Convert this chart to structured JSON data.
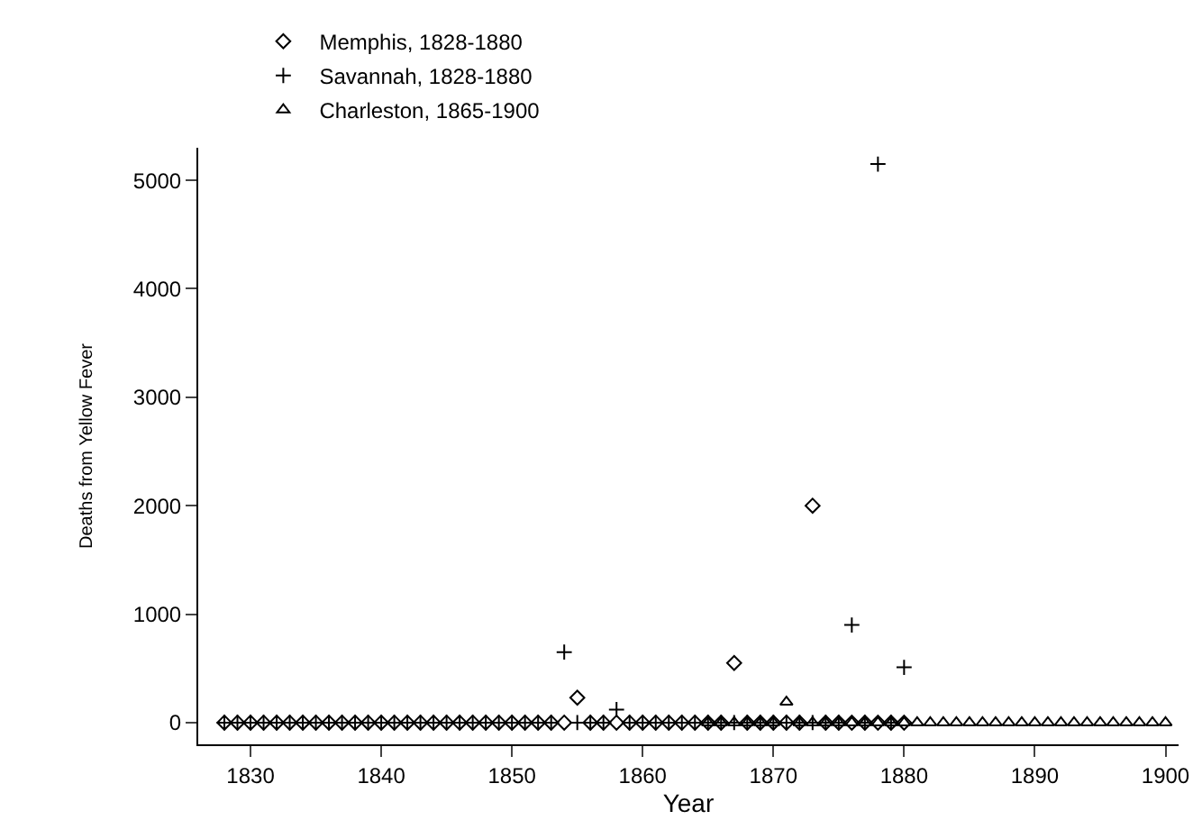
{
  "chart_data": {
    "type": "scatter",
    "xlabel": "Year",
    "ylabel": "Deaths from Yellow Fever",
    "legend": "top",
    "grid": false,
    "xlim": [
      1826,
      1901
    ],
    "xticks": [
      1830,
      1840,
      1850,
      1860,
      1870,
      1880,
      1890,
      1900
    ],
    "ylim": [
      -200,
      5300
    ],
    "yticks": [
      0,
      1000,
      2000,
      3000,
      4000,
      5000
    ],
    "series": [
      {
        "name": "Memphis, 1828-1880",
        "color": "#000000",
        "marker": "diamond",
        "x": [
          1828,
          1829,
          1830,
          1831,
          1832,
          1833,
          1834,
          1835,
          1836,
          1837,
          1838,
          1839,
          1840,
          1841,
          1842,
          1843,
          1844,
          1845,
          1846,
          1847,
          1848,
          1849,
          1850,
          1851,
          1852,
          1853,
          1854,
          1855,
          1856,
          1857,
          1858,
          1859,
          1860,
          1861,
          1862,
          1863,
          1864,
          1865,
          1866,
          1867,
          1868,
          1869,
          1870,
          1871,
          1872,
          1873,
          1874,
          1875,
          1876,
          1877,
          1878,
          1879,
          1880
        ],
        "values": [
          0,
          0,
          0,
          0,
          0,
          0,
          0,
          0,
          0,
          0,
          0,
          0,
          0,
          0,
          0,
          0,
          0,
          0,
          0,
          0,
          0,
          0,
          0,
          0,
          0,
          0,
          0,
          230,
          0,
          0,
          0,
          0,
          0,
          0,
          0,
          0,
          0,
          0,
          0,
          550,
          0,
          0,
          0,
          0,
          0,
          2000,
          0,
          0,
          0,
          0,
          0,
          0,
          0
        ]
      },
      {
        "name": "Savannah, 1828-1880",
        "color": "#000000",
        "marker": "cross",
        "x": [
          1828,
          1829,
          1830,
          1831,
          1832,
          1833,
          1834,
          1835,
          1836,
          1837,
          1838,
          1839,
          1840,
          1841,
          1842,
          1843,
          1844,
          1845,
          1846,
          1847,
          1848,
          1849,
          1850,
          1851,
          1852,
          1853,
          1854,
          1855,
          1856,
          1857,
          1858,
          1859,
          1860,
          1861,
          1862,
          1863,
          1864,
          1865,
          1866,
          1867,
          1868,
          1869,
          1870,
          1871,
          1872,
          1873,
          1874,
          1875,
          1876,
          1877,
          1878,
          1879,
          1880
        ],
        "values": [
          0,
          0,
          0,
          0,
          0,
          0,
          0,
          0,
          0,
          0,
          0,
          0,
          0,
          0,
          0,
          0,
          0,
          0,
          0,
          0,
          0,
          0,
          0,
          0,
          0,
          0,
          650,
          0,
          0,
          0,
          120,
          0,
          0,
          0,
          0,
          0,
          0,
          0,
          0,
          0,
          0,
          0,
          0,
          0,
          0,
          0,
          0,
          0,
          900,
          0,
          5150,
          0,
          510
        ]
      },
      {
        "name": "Charleston, 1865-1900",
        "color": "#000000",
        "marker": "triangle",
        "x": [
          1865,
          1866,
          1867,
          1868,
          1869,
          1870,
          1871,
          1872,
          1873,
          1874,
          1875,
          1876,
          1877,
          1878,
          1879,
          1880,
          1881,
          1882,
          1883,
          1884,
          1885,
          1886,
          1887,
          1888,
          1889,
          1890,
          1891,
          1892,
          1893,
          1894,
          1895,
          1896,
          1897,
          1898,
          1899,
          1900
        ],
        "values": [
          0,
          0,
          0,
          0,
          0,
          0,
          190,
          0,
          0,
          0,
          0,
          0,
          0,
          0,
          0,
          0,
          0,
          0,
          0,
          0,
          0,
          0,
          0,
          0,
          0,
          0,
          0,
          0,
          0,
          0,
          0,
          0,
          0,
          0,
          0,
          0
        ]
      }
    ]
  }
}
